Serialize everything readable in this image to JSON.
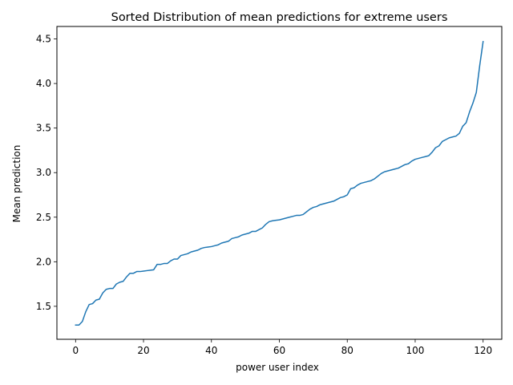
{
  "chart_data": {
    "type": "line",
    "title": "Sorted Distribution of mean predictions for extreme users",
    "xlabel": "power user index",
    "ylabel": "Mean prediction",
    "xlim": [
      -5.5,
      125.5
    ],
    "ylim": [
      1.13,
      4.64
    ],
    "xticks": [
      0,
      20,
      40,
      60,
      80,
      100,
      120
    ],
    "yticks": [
      1.5,
      2.0,
      2.5,
      3.0,
      3.5,
      4.0,
      4.5
    ],
    "xtick_labels": [
      "0",
      "20",
      "40",
      "60",
      "80",
      "100",
      "120"
    ],
    "ytick_labels": [
      "1.5",
      "2.0",
      "2.5",
      "3.0",
      "3.5",
      "4.0",
      "4.5"
    ],
    "grid": false,
    "legend": "none",
    "line_color": "#1f77b4",
    "series": [
      {
        "x": [
          0,
          1,
          2,
          3,
          4,
          5,
          6,
          7,
          8,
          9,
          10,
          11,
          12,
          13,
          14,
          15,
          16,
          17,
          18,
          19,
          20,
          21,
          22,
          23,
          24,
          25,
          26,
          27,
          28,
          29,
          30,
          31,
          32,
          33,
          34,
          35,
          36,
          37,
          38,
          39,
          40,
          41,
          42,
          43,
          44,
          45,
          46,
          47,
          48,
          49,
          50,
          51,
          52,
          53,
          54,
          55,
          56,
          57,
          58,
          59,
          60,
          61,
          62,
          63,
          64,
          65,
          66,
          67,
          68,
          69,
          70,
          71,
          72,
          73,
          74,
          75,
          76,
          77,
          78,
          79,
          80,
          81,
          82,
          83,
          84,
          85,
          86,
          87,
          88,
          89,
          90,
          91,
          92,
          93,
          94,
          95,
          96,
          97,
          98,
          99,
          100,
          101,
          102,
          103,
          104,
          105,
          106,
          107,
          108,
          109,
          110,
          111,
          112,
          113,
          114,
          115,
          116,
          117,
          118,
          119,
          120
        ],
        "y": [
          1.29,
          1.29,
          1.33,
          1.44,
          1.52,
          1.53,
          1.57,
          1.58,
          1.65,
          1.69,
          1.7,
          1.7,
          1.75,
          1.77,
          1.78,
          1.83,
          1.87,
          1.87,
          1.89,
          1.89,
          1.895,
          1.9,
          1.905,
          1.91,
          1.97,
          1.97,
          1.98,
          1.98,
          2.01,
          2.03,
          2.03,
          2.07,
          2.08,
          2.09,
          2.11,
          2.12,
          2.13,
          2.15,
          2.16,
          2.165,
          2.17,
          2.18,
          2.19,
          2.21,
          2.22,
          2.23,
          2.26,
          2.27,
          2.28,
          2.3,
          2.31,
          2.32,
          2.34,
          2.34,
          2.36,
          2.38,
          2.42,
          2.45,
          2.46,
          2.465,
          2.47,
          2.48,
          2.49,
          2.5,
          2.51,
          2.52,
          2.52,
          2.53,
          2.56,
          2.59,
          2.61,
          2.62,
          2.64,
          2.65,
          2.66,
          2.67,
          2.68,
          2.7,
          2.72,
          2.73,
          2.75,
          2.82,
          2.83,
          2.86,
          2.88,
          2.89,
          2.9,
          2.91,
          2.93,
          2.96,
          2.99,
          3.01,
          3.02,
          3.03,
          3.04,
          3.05,
          3.07,
          3.09,
          3.1,
          3.13,
          3.15,
          3.16,
          3.17,
          3.18,
          3.19,
          3.23,
          3.28,
          3.3,
          3.35,
          3.37,
          3.39,
          3.4,
          3.41,
          3.44,
          3.52,
          3.56,
          3.68,
          3.78,
          3.9,
          4.2,
          4.47
        ]
      }
    ]
  }
}
